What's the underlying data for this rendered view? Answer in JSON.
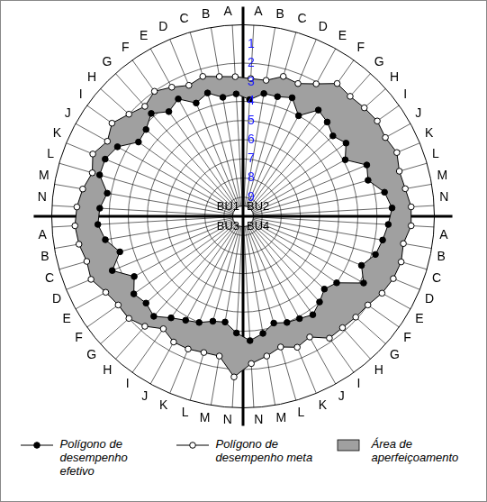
{
  "chart_data": {
    "type": "radar",
    "categories": [
      "A",
      "B",
      "C",
      "D",
      "E",
      "F",
      "G",
      "H",
      "I",
      "J",
      "K",
      "L",
      "M",
      "N",
      "A",
      "B",
      "C",
      "D",
      "E",
      "F",
      "G",
      "H",
      "I",
      "J",
      "K",
      "L",
      "M",
      "N",
      "N",
      "M",
      "L",
      "K",
      "J",
      "I",
      "H",
      "G",
      "F",
      "E",
      "D",
      "C",
      "B",
      "A",
      "N",
      "M",
      "L",
      "K",
      "J",
      "I",
      "H",
      "G",
      "F",
      "E",
      "D",
      "C",
      "B",
      "A"
    ],
    "quadrant_labels": [
      "BU1",
      "BU2",
      "BU3",
      "BU4"
    ],
    "series": [
      {
        "name": "Polígono de desempenho efetivo",
        "color": "#000000",
        "marker": "filled_circle",
        "line_style": "solid",
        "values": [
          3.9,
          3.5,
          3.5,
          3.3,
          4.0,
          3.2,
          3.4,
          3.7,
          3.4,
          3.9,
          3.0,
          3.2,
          2.5,
          2.2,
          2.4,
          2.6,
          2.8,
          3.3,
          2.8,
          4.0,
          4.3,
          4.0,
          3.7,
          3.9,
          4.0,
          4.2,
          3.8,
          3.5,
          3.9,
          4.4,
          4.3,
          4.0,
          3.8,
          3.5,
          3.0,
          3.2,
          3.0,
          3.5,
          2.6,
          3.3,
          2.7,
          2.4,
          2.5,
          2.8,
          2.2,
          2.2,
          2.5,
          3.3,
          3.2,
          2.8,
          3.3,
          3.0,
          3.6,
          3.3,
          3.7,
          3.6
        ]
      },
      {
        "name": "Polígono de desempenho meta",
        "color": "#000000",
        "marker": "open_circle",
        "line_style": "solid",
        "values": [
          2.8,
          2.8,
          2.4,
          2.5,
          2.1,
          1.5,
          1.6,
          1.5,
          1.4,
          1.5,
          1.3,
          1.5,
          1.4,
          1.2,
          1.2,
          1.5,
          1.4,
          1.5,
          1.7,
          2.0,
          2.1,
          2.2,
          2.2,
          2.8,
          2.6,
          2.9,
          2.6,
          2.3,
          1.6,
          2.6,
          2.6,
          2.5,
          2.5,
          2.8,
          2.3,
          2.0,
          2.0,
          1.8,
          1.4,
          1.5,
          1.3,
          1.2,
          1.3,
          1.5,
          1.8,
          1.5,
          1.9,
          1.6,
          2.0,
          2.3,
          2.0,
          2.3,
          2.6,
          2.4,
          2.6,
          2.7
        ]
      }
    ],
    "area": {
      "name": "Área de aperfeiçoamento",
      "color": "#a0a0a0"
    },
    "ylim": [
      10,
      0
    ],
    "yticks": [
      1,
      2,
      3,
      4,
      5,
      6,
      7,
      8,
      9
    ],
    "grid": true,
    "legend": "bottom"
  }
}
